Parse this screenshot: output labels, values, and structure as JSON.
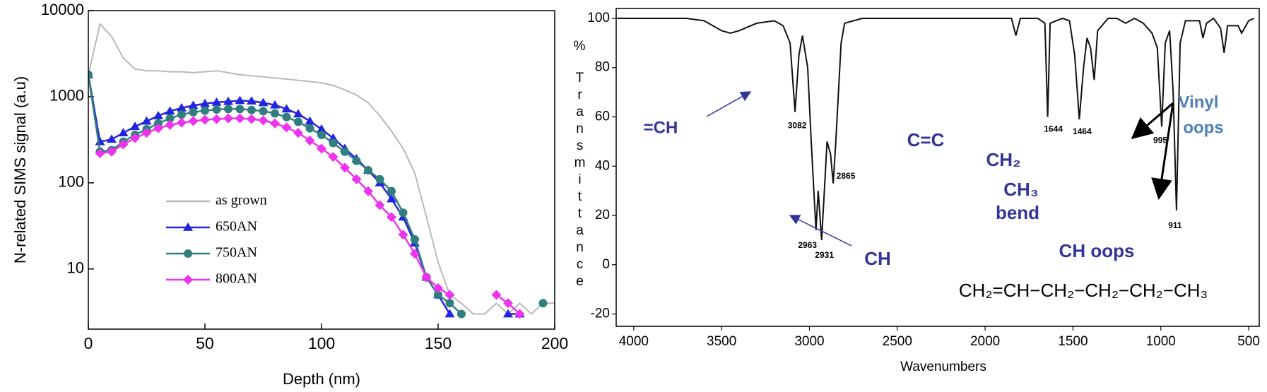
{
  "chart_data": [
    {
      "type": "line",
      "log_y": true,
      "xlabel": "Depth (nm)",
      "ylabel": "N-related SIMS signal (a.u)",
      "xlim": [
        0,
        200
      ],
      "xticks": [
        0,
        50,
        100,
        150,
        200
      ],
      "ylim": [
        2,
        10000
      ],
      "yticks": [
        10,
        100,
        1000,
        10000
      ],
      "x": [
        0,
        5,
        10,
        15,
        20,
        25,
        30,
        35,
        40,
        45,
        50,
        55,
        60,
        65,
        70,
        75,
        80,
        85,
        90,
        95,
        100,
        105,
        110,
        115,
        120,
        125,
        130,
        135,
        140,
        145,
        150,
        155,
        160,
        165,
        170,
        175,
        180,
        185,
        190,
        195,
        200
      ],
      "series": [
        {
          "name": "as grown",
          "color": "#b8b8b8",
          "marker": "none",
          "values": [
            1800,
            7000,
            5000,
            2800,
            2100,
            2000,
            2000,
            1950,
            1950,
            1900,
            1950,
            2000,
            1900,
            1800,
            1750,
            1700,
            1650,
            1600,
            1550,
            1500,
            1450,
            1350,
            1200,
            1050,
            850,
            600,
            400,
            250,
            130,
            40,
            12,
            5,
            4,
            3,
            3,
            4,
            3,
            4,
            3,
            4,
            4
          ]
        },
        {
          "name": "650AN",
          "color": "#2424e0",
          "marker": "triangle",
          "values": [
            1800,
            300,
            320,
            380,
            450,
            520,
            600,
            680,
            740,
            790,
            830,
            860,
            880,
            900,
            890,
            850,
            800,
            720,
            630,
            520,
            420,
            330,
            250,
            190,
            140,
            100,
            65,
            40,
            20,
            8,
            5,
            3,
            null,
            null,
            null,
            null,
            3,
            3,
            null,
            null,
            null
          ]
        },
        {
          "name": "750AN",
          "color": "#2f7f7c",
          "marker": "circle",
          "values": [
            1800,
            230,
            240,
            300,
            360,
            420,
            490,
            560,
            620,
            660,
            690,
            710,
            720,
            720,
            700,
            680,
            640,
            580,
            510,
            430,
            360,
            290,
            230,
            180,
            140,
            110,
            80,
            45,
            22,
            8,
            5,
            4,
            3,
            null,
            null,
            null,
            null,
            null,
            null,
            4,
            null
          ]
        },
        {
          "name": "800AN",
          "color": "#ee33ee",
          "marker": "diamond",
          "values": [
            null,
            220,
            230,
            280,
            330,
            380,
            430,
            470,
            500,
            520,
            540,
            550,
            560,
            560,
            550,
            530,
            490,
            440,
            380,
            310,
            250,
            200,
            150,
            110,
            80,
            55,
            40,
            25,
            15,
            8,
            6,
            5,
            null,
            null,
            null,
            5,
            4,
            3,
            null,
            null,
            null
          ]
        }
      ]
    },
    {
      "type": "spectrum",
      "xlabel": "Wavenumbers",
      "ylabel_unit": "%",
      "ylabel": "Transmittance",
      "xlim": [
        4100,
        440
      ],
      "xticks": [
        4000,
        3500,
        3000,
        2500,
        2000,
        1500,
        1000,
        500
      ],
      "ylim": [
        -25,
        104
      ],
      "yticks": [
        -20,
        0,
        20,
        40,
        60,
        80,
        100
      ],
      "color": "#111111",
      "x": [
        4100,
        3700,
        3600,
        3500,
        3450,
        3400,
        3300,
        3200,
        3150,
        3110,
        3082,
        3060,
        3040,
        3010,
        2990,
        2963,
        2950,
        2931,
        2915,
        2900,
        2880,
        2865,
        2850,
        2820,
        2800,
        2700,
        2000,
        1850,
        1825,
        1800,
        1700,
        1660,
        1644,
        1630,
        1560,
        1520,
        1490,
        1464,
        1440,
        1420,
        1400,
        1379,
        1360,
        1300,
        1250,
        1200,
        1150,
        1100,
        1050,
        1020,
        995,
        975,
        950,
        930,
        911,
        890,
        860,
        780,
        760,
        740,
        700,
        660,
        640,
        620,
        560,
        540,
        500,
        470
      ],
      "values": [
        100,
        100,
        99,
        95,
        94,
        95,
        98,
        99,
        97,
        90,
        62,
        85,
        93,
        80,
        50,
        14,
        30,
        10,
        30,
        50,
        45,
        33,
        50,
        90,
        98,
        100,
        100,
        100,
        93,
        100,
        100,
        98,
        60,
        98,
        100,
        99,
        85,
        59,
        80,
        92,
        88,
        75,
        95,
        100,
        100,
        98,
        100,
        98,
        94,
        88,
        56,
        90,
        95,
        70,
        22,
        90,
        99,
        99,
        92,
        98,
        100,
        96,
        86,
        97,
        97,
        94,
        99,
        100
      ],
      "peak_labels": {
        "x": [
          3082,
          2963,
          2931,
          2865,
          1644,
          1464,
          995,
          911
        ],
        "y": [
          62,
          14,
          10,
          33,
          60,
          59,
          56,
          22
        ]
      },
      "annotations": [
        "=CH",
        "CH",
        "C=C",
        "CH₂",
        "CH₃",
        "bend",
        "Vinyl",
        "oops",
        "CH oops"
      ],
      "formula": "CH₂=CH−CH₂−CH₂−CH₂−CH₃"
    }
  ]
}
